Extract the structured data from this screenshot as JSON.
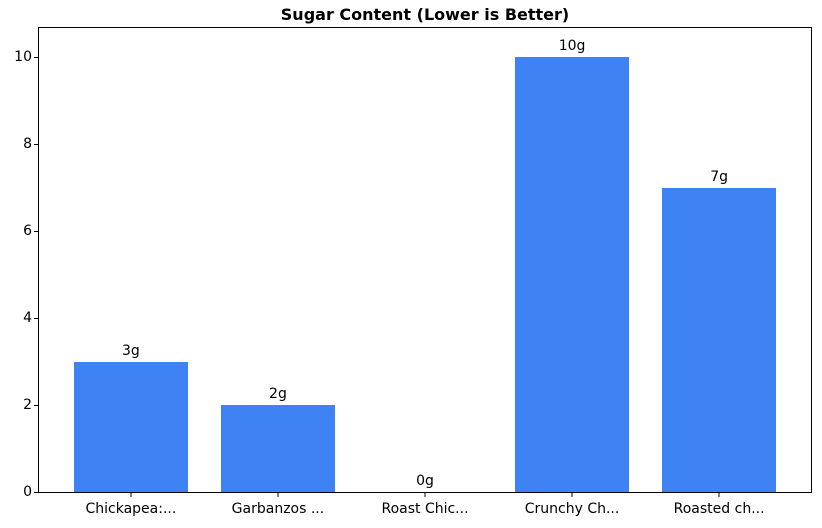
{
  "chart_data": {
    "type": "bar",
    "title": "Sugar Content (Lower is Better)",
    "categories": [
      "Chickapea:...",
      "Garbanzos ...",
      "Roast Chic...",
      "Crunchy Ch...",
      "Roasted ch..."
    ],
    "values": [
      3,
      2,
      0,
      10,
      7
    ],
    "value_labels": [
      "3g",
      "2g",
      "0g",
      "10g",
      "7g"
    ],
    "xlabel": "",
    "ylabel": "",
    "yticks": [
      0,
      2,
      4,
      6,
      8,
      10
    ],
    "ylim": [
      0,
      10.67
    ],
    "xlim": [
      -0.625,
      4.625
    ],
    "bar_width": 0.78,
    "bar_color": "#3e82f3",
    "text_color": "#000000",
    "grid": false,
    "legend": "none"
  }
}
